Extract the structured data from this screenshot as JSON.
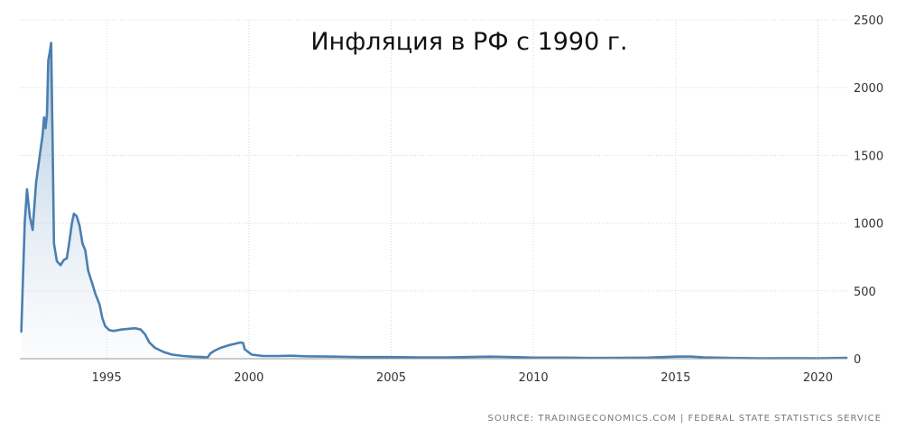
{
  "chart_data": {
    "type": "area",
    "title": "Инфляция в РФ с 1990 г.",
    "xlabel": "",
    "ylabel": "",
    "xlim": [
      1991.95,
      2021.0
    ],
    "ylim": [
      0,
      2500
    ],
    "x_ticks": [
      1995,
      2000,
      2005,
      2010,
      2015,
      2020
    ],
    "y_ticks": [
      0,
      500,
      1000,
      1500,
      2000,
      2500
    ],
    "y_axis_side": "right",
    "grid": true,
    "legend": "none",
    "series_color": "#4a7fb0",
    "fill_color": "#c8d9ea",
    "series": [
      {
        "points": [
          [
            1992.0,
            200
          ],
          [
            1992.12,
            1000
          ],
          [
            1992.2,
            1250
          ],
          [
            1992.3,
            1050
          ],
          [
            1992.4,
            950
          ],
          [
            1992.52,
            1300
          ],
          [
            1992.65,
            1500
          ],
          [
            1992.75,
            1650
          ],
          [
            1992.8,
            1780
          ],
          [
            1992.85,
            1700
          ],
          [
            1992.9,
            1800
          ],
          [
            1992.95,
            2200
          ],
          [
            1993.0,
            2260
          ],
          [
            1993.05,
            2330
          ],
          [
            1993.1,
            1600
          ],
          [
            1993.15,
            850
          ],
          [
            1993.25,
            720
          ],
          [
            1993.38,
            690
          ],
          [
            1993.5,
            730
          ],
          [
            1993.6,
            740
          ],
          [
            1993.68,
            850
          ],
          [
            1993.78,
            1000
          ],
          [
            1993.85,
            1070
          ],
          [
            1993.95,
            1050
          ],
          [
            1994.05,
            980
          ],
          [
            1994.15,
            850
          ],
          [
            1994.25,
            800
          ],
          [
            1994.35,
            650
          ],
          [
            1994.5,
            550
          ],
          [
            1994.6,
            480
          ],
          [
            1994.75,
            400
          ],
          [
            1994.85,
            300
          ],
          [
            1994.95,
            240
          ],
          [
            1995.1,
            210
          ],
          [
            1995.25,
            205
          ],
          [
            1995.5,
            215
          ],
          [
            1995.75,
            220
          ],
          [
            1996.0,
            225
          ],
          [
            1996.2,
            215
          ],
          [
            1996.35,
            180
          ],
          [
            1996.5,
            120
          ],
          [
            1996.7,
            80
          ],
          [
            1997.0,
            50
          ],
          [
            1997.3,
            30
          ],
          [
            1997.7,
            20
          ],
          [
            1998.0,
            15
          ],
          [
            1998.4,
            12
          ],
          [
            1998.55,
            10
          ],
          [
            1998.65,
            40
          ],
          [
            1998.8,
            60
          ],
          [
            1999.0,
            80
          ],
          [
            1999.3,
            100
          ],
          [
            1999.5,
            110
          ],
          [
            1999.7,
            120
          ],
          [
            1999.8,
            115
          ],
          [
            1999.85,
            70
          ],
          [
            2000.1,
            30
          ],
          [
            2000.5,
            20
          ],
          [
            2001.0,
            20
          ],
          [
            2001.5,
            22
          ],
          [
            2002.0,
            18
          ],
          [
            2003.0,
            15
          ],
          [
            2004.0,
            12
          ],
          [
            2005.0,
            12
          ],
          [
            2006.0,
            10
          ],
          [
            2007.0,
            10
          ],
          [
            2008.0,
            14
          ],
          [
            2008.5,
            15
          ],
          [
            2009.0,
            13
          ],
          [
            2009.5,
            11
          ],
          [
            2010.0,
            8
          ],
          [
            2011.0,
            8
          ],
          [
            2012.0,
            5
          ],
          [
            2013.0,
            6
          ],
          [
            2014.0,
            8
          ],
          [
            2015.0,
            15
          ],
          [
            2015.5,
            16
          ],
          [
            2016.0,
            10
          ],
          [
            2017.0,
            5
          ],
          [
            2018.0,
            3
          ],
          [
            2019.0,
            4
          ],
          [
            2020.0,
            3
          ],
          [
            2021.0,
            6
          ]
        ]
      }
    ]
  },
  "source": "SOURCE: TRADINGECONOMICS.COM  |  FEDERAL STATE STATISTICS SERVICE"
}
